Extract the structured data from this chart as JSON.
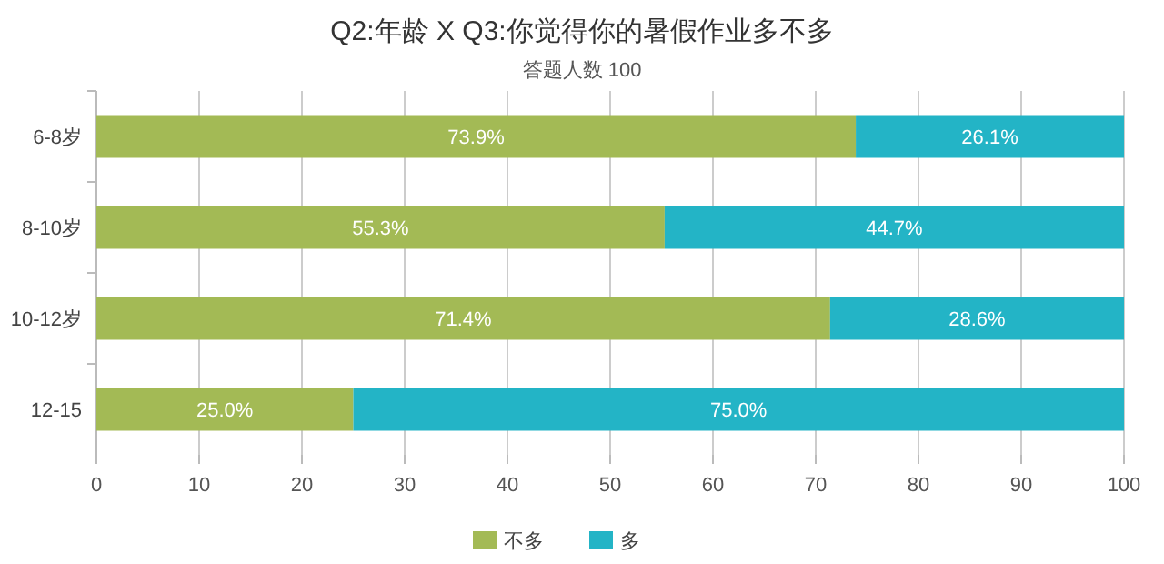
{
  "chart_data": {
    "type": "bar",
    "orientation": "horizontal",
    "stacked": true,
    "title": "Q2:年龄 X Q3:你觉得你的暑假作业多不多",
    "subtitle": "答题人数 100",
    "categories": [
      "6-8岁",
      "8-10岁",
      "10-12岁",
      "12-15"
    ],
    "series": [
      {
        "name": "不多",
        "color": "#a3ba55",
        "values": [
          73.9,
          55.3,
          71.4,
          25.0
        ],
        "value_labels": [
          "73.9%",
          "55.3%",
          "71.4%",
          "25.0%"
        ]
      },
      {
        "name": "多",
        "color": "#23b4c6",
        "values": [
          26.1,
          44.7,
          28.6,
          75.0
        ],
        "value_labels": [
          "26.1%",
          "44.7%",
          "28.6%",
          "75.0%"
        ]
      }
    ],
    "xlim": [
      0,
      100
    ],
    "xticks": [
      0,
      10,
      20,
      30,
      40,
      50,
      60,
      70,
      80,
      90,
      100
    ],
    "grid": "x",
    "legend": "bottom"
  }
}
